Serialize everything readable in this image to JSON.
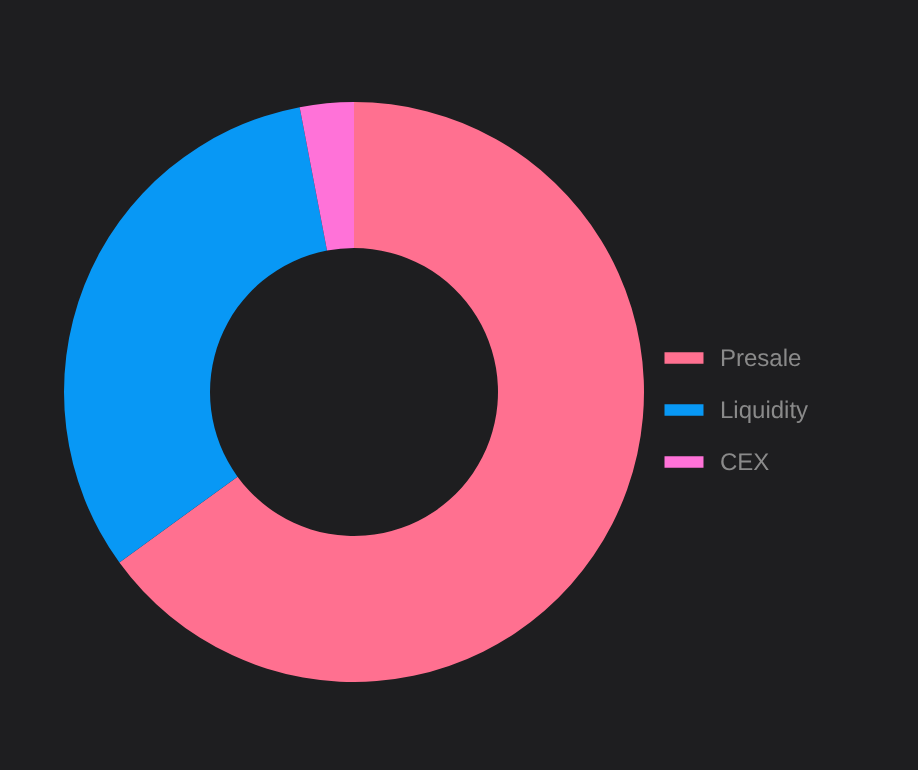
{
  "chart_data": {
    "type": "donut",
    "categories": [
      "Presale",
      "Liquidity",
      "CEX"
    ],
    "values": [
      65,
      32,
      3
    ],
    "colors": [
      "#ff7090",
      "#0898f5",
      "#ff72d8"
    ],
    "legend": "right"
  }
}
